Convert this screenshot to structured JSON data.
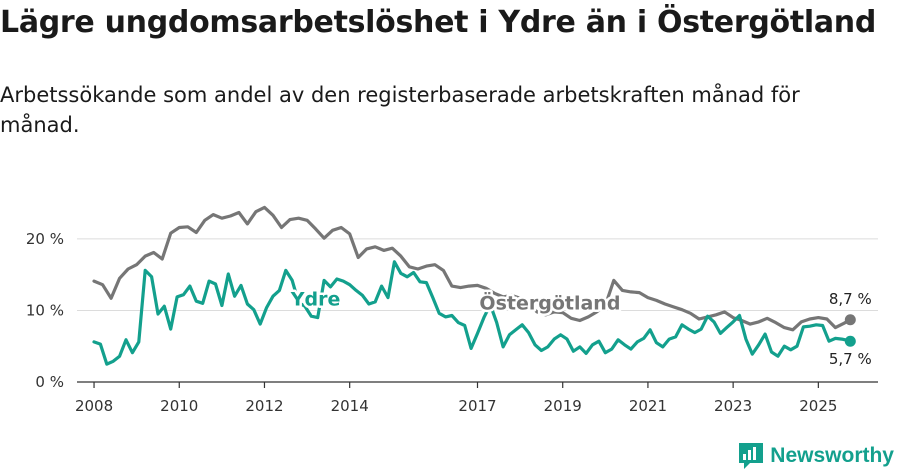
{
  "header": {
    "title": "Lägre ungdomsarbetslöshet i Ydre än i Östergötland",
    "subtitle": "Arbetssökande som andel av den registerbaserade arbetskraften månad för månad."
  },
  "brand": {
    "name": "Newsworthy",
    "icon": "newsworthy-logo-icon",
    "color": "#13a08d"
  },
  "chart_data": {
    "type": "line",
    "title": "Lägre ungdomsarbetslöshet i Ydre än i Östergötland",
    "subtitle": "Arbetssökande som andel av den registerbaserade arbetskraften månad för månad.",
    "xlabel": "",
    "ylabel": "",
    "ylim": [
      0,
      26
    ],
    "xlim": [
      2007.6,
      2026.4
    ],
    "grid": true,
    "y_ticks": [
      {
        "value": 0,
        "label": "0 %"
      },
      {
        "value": 10,
        "label": "10 %"
      },
      {
        "value": 20,
        "label": "20 %"
      }
    ],
    "x_ticks": [
      {
        "value": 2008,
        "label": "2008"
      },
      {
        "value": 2010,
        "label": "2010"
      },
      {
        "value": 2012,
        "label": "2012"
      },
      {
        "value": 2014,
        "label": "2014"
      },
      {
        "value": 2017,
        "label": "2017"
      },
      {
        "value": 2019,
        "label": "2019"
      },
      {
        "value": 2021,
        "label": "2021"
      },
      {
        "value": 2023,
        "label": "2023"
      },
      {
        "value": 2025,
        "label": "2025"
      }
    ],
    "series": [
      {
        "name": "Östergötland",
        "color": "#767676",
        "end_label": "8,7 %",
        "x": [
          2008.0,
          2008.2,
          2008.4,
          2008.6,
          2008.8,
          2009.0,
          2009.2,
          2009.4,
          2009.6,
          2009.8,
          2010.0,
          2010.2,
          2010.4,
          2010.6,
          2010.8,
          2011.0,
          2011.2,
          2011.4,
          2011.6,
          2011.8,
          2012.0,
          2012.2,
          2012.4,
          2012.6,
          2012.8,
          2013.0,
          2013.2,
          2013.4,
          2013.6,
          2013.8,
          2014.0,
          2014.2,
          2014.4,
          2014.6,
          2014.8,
          2015.0,
          2015.2,
          2015.4,
          2015.6,
          2015.8,
          2016.0,
          2016.2,
          2016.4,
          2016.6,
          2016.8,
          2017.0,
          2017.2,
          2017.4,
          2017.6,
          2017.8,
          2018.0,
          2018.2,
          2018.4,
          2018.6,
          2018.8,
          2019.0,
          2019.2,
          2019.4,
          2019.6,
          2019.8,
          2020.0,
          2020.2,
          2020.4,
          2020.6,
          2020.8,
          2021.0,
          2021.2,
          2021.4,
          2021.6,
          2021.8,
          2022.0,
          2022.2,
          2022.4,
          2022.6,
          2022.8,
          2023.0,
          2023.2,
          2023.4,
          2023.6,
          2023.8,
          2024.0,
          2024.2,
          2024.4,
          2024.6,
          2024.8,
          2025.0,
          2025.2,
          2025.4,
          2025.6,
          2025.75
        ],
        "values": [
          14.1,
          13.6,
          11.7,
          14.5,
          15.8,
          16.4,
          17.6,
          18.1,
          17.2,
          20.8,
          21.6,
          21.7,
          20.9,
          22.6,
          23.4,
          22.9,
          23.2,
          23.7,
          22.1,
          23.8,
          24.4,
          23.3,
          21.6,
          22.7,
          22.9,
          22.6,
          21.4,
          20.1,
          21.2,
          21.6,
          20.7,
          17.4,
          18.6,
          18.9,
          18.4,
          18.7,
          17.6,
          16.1,
          15.8,
          16.2,
          16.4,
          15.6,
          13.4,
          13.2,
          13.4,
          13.5,
          13.1,
          12.4,
          11.9,
          12.1,
          11.7,
          10.9,
          9.8,
          9.4,
          9.8,
          9.7,
          8.9,
          8.6,
          9.1,
          9.8,
          10.7,
          14.2,
          12.8,
          12.6,
          12.5,
          11.8,
          11.4,
          10.9,
          10.5,
          10.1,
          9.6,
          8.8,
          9.1,
          9.4,
          9.8,
          9.0,
          8.6,
          8.1,
          8.4,
          8.9,
          8.3,
          7.6,
          7.3,
          8.4,
          8.8,
          9.0,
          8.8,
          7.6,
          8.2,
          8.7
        ]
      },
      {
        "name": "Ydre",
        "color": "#13a08d",
        "end_label": "5,7 %",
        "x": [
          2008.0,
          2008.15,
          2008.3,
          2008.45,
          2008.6,
          2008.75,
          2008.9,
          2009.05,
          2009.2,
          2009.35,
          2009.5,
          2009.65,
          2009.8,
          2009.95,
          2010.1,
          2010.25,
          2010.4,
          2010.55,
          2010.7,
          2010.85,
          2011.0,
          2011.15,
          2011.3,
          2011.45,
          2011.6,
          2011.75,
          2011.9,
          2012.05,
          2012.2,
          2012.35,
          2012.5,
          2012.65,
          2012.8,
          2012.95,
          2013.1,
          2013.25,
          2013.4,
          2013.55,
          2013.7,
          2013.85,
          2014.0,
          2014.15,
          2014.3,
          2014.45,
          2014.6,
          2014.75,
          2014.9,
          2015.05,
          2015.2,
          2015.35,
          2015.5,
          2015.65,
          2015.8,
          2015.95,
          2016.1,
          2016.25,
          2016.4,
          2016.55,
          2016.7,
          2016.85,
          2017.0,
          2017.15,
          2017.3,
          2017.45,
          2017.6,
          2017.75,
          2017.9,
          2018.05,
          2018.2,
          2018.35,
          2018.5,
          2018.65,
          2018.8,
          2018.95,
          2019.1,
          2019.25,
          2019.4,
          2019.55,
          2019.7,
          2019.85,
          2020.0,
          2020.15,
          2020.3,
          2020.45,
          2020.6,
          2020.75,
          2020.9,
          2021.05,
          2021.2,
          2021.35,
          2021.5,
          2021.65,
          2021.8,
          2021.95,
          2022.1,
          2022.25,
          2022.4,
          2022.55,
          2022.7,
          2022.85,
          2023.0,
          2023.15,
          2023.3,
          2023.45,
          2023.6,
          2023.75,
          2023.9,
          2024.05,
          2024.2,
          2024.35,
          2024.5,
          2024.65,
          2024.8,
          2024.95,
          2025.1,
          2025.25,
          2025.4,
          2025.55,
          2025.7,
          2025.75
        ],
        "values": [
          5.6,
          5.3,
          2.5,
          2.9,
          3.6,
          5.9,
          4.1,
          5.6,
          15.6,
          14.7,
          9.5,
          10.6,
          7.4,
          11.9,
          12.2,
          13.4,
          11.3,
          11.0,
          14.1,
          13.7,
          10.7,
          15.1,
          12.0,
          13.5,
          10.9,
          10.1,
          8.1,
          10.4,
          12.0,
          12.8,
          15.6,
          14.2,
          11.1,
          10.6,
          9.2,
          9.0,
          14.2,
          13.3,
          14.4,
          14.1,
          13.6,
          12.8,
          12.1,
          10.9,
          11.2,
          13.4,
          11.8,
          16.8,
          15.2,
          14.7,
          15.3,
          14.0,
          13.9,
          11.8,
          9.6,
          9.1,
          9.3,
          8.3,
          7.9,
          4.7,
          6.8,
          9.0,
          10.8,
          8.3,
          4.9,
          6.6,
          7.3,
          8.0,
          6.9,
          5.2,
          4.4,
          4.9,
          6.0,
          6.6,
          6.0,
          4.3,
          4.9,
          4.0,
          5.2,
          5.7,
          4.1,
          4.6,
          5.9,
          5.2,
          4.6,
          5.6,
          6.1,
          7.3,
          5.5,
          4.9,
          6.0,
          6.3,
          8.0,
          7.4,
          6.9,
          7.4,
          9.2,
          8.4,
          6.8,
          7.6,
          8.4,
          9.3,
          6.0,
          3.9,
          5.2,
          6.7,
          4.2,
          3.6,
          5.0,
          4.5,
          5.0,
          7.7,
          7.8,
          8.0,
          7.9,
          5.7,
          6.1,
          6.0,
          5.8,
          5.7
        ]
      }
    ],
    "annotations": [
      {
        "text": "Ydre",
        "series": "Ydre",
        "x": 2013.2,
        "y": 10.7
      },
      {
        "text": "Östergötland",
        "series": "Östergötland",
        "x": 2018.7,
        "y": 10.1
      }
    ]
  }
}
